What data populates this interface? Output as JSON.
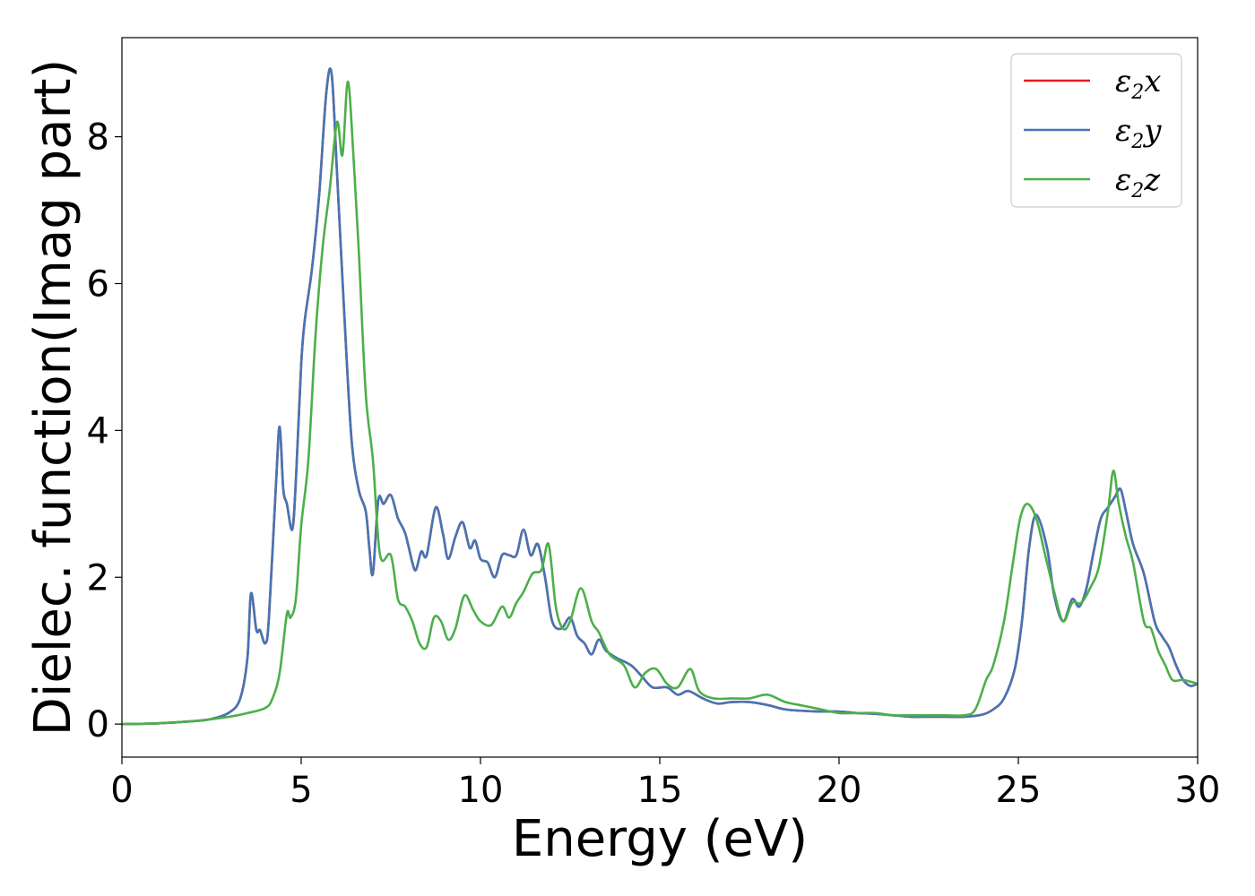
{
  "chart_data": {
    "type": "line",
    "xlabel": "Energy (eV)",
    "ylabel": "Dielec. function(Imag part)",
    "xlim": [
      0,
      30
    ],
    "ylim": [
      -0.45,
      9.35
    ],
    "xticks": [
      0,
      5,
      10,
      15,
      20,
      25,
      30
    ],
    "yticks": [
      0,
      2,
      4,
      6,
      8
    ],
    "legend_position": "top-right",
    "grid": false,
    "series": [
      {
        "name": "ε₂x",
        "label_base": "ε",
        "label_sub": "2",
        "label_tail": "x",
        "color": "#e41a1c",
        "x": [
          0,
          1,
          2,
          2.5,
          3.0,
          3.3,
          3.5,
          3.6,
          3.75,
          3.85,
          4.0,
          4.1,
          4.3,
          4.4,
          4.5,
          4.6,
          4.75,
          4.85,
          5.0,
          5.1,
          5.3,
          5.5,
          5.7,
          5.85,
          6.0,
          6.2,
          6.4,
          6.6,
          6.8,
          6.9,
          7.0,
          7.15,
          7.3,
          7.5,
          7.7,
          7.9,
          8.1,
          8.2,
          8.35,
          8.5,
          8.75,
          8.95,
          9.1,
          9.3,
          9.5,
          9.7,
          9.85,
          10.0,
          10.2,
          10.4,
          10.6,
          10.8,
          11.0,
          11.2,
          11.4,
          11.6,
          11.8,
          12.0,
          12.25,
          12.5,
          12.7,
          12.9,
          13.1,
          13.3,
          13.5,
          13.8,
          14.2,
          14.5,
          14.8,
          15.2,
          15.5,
          15.8,
          16.2,
          16.6,
          17.0,
          17.5,
          18.0,
          18.5,
          19.0,
          19.5,
          20.0,
          20.5,
          21.0,
          21.5,
          22.0,
          22.5,
          23.0,
          23.5,
          24.0,
          24.3,
          24.6,
          24.9,
          25.1,
          25.3,
          25.5,
          25.8,
          26.0,
          26.25,
          26.5,
          26.7,
          26.9,
          27.1,
          27.3,
          27.5,
          27.7,
          27.85,
          28.0,
          28.2,
          28.5,
          28.8,
          29.0,
          29.2,
          29.4,
          29.6,
          29.8,
          30.0
        ],
        "values": [
          0.0,
          0.01,
          0.04,
          0.07,
          0.16,
          0.35,
          0.9,
          1.78,
          1.28,
          1.28,
          1.1,
          1.45,
          3.3,
          4.05,
          3.2,
          3.0,
          2.65,
          3.3,
          4.9,
          5.5,
          6.2,
          7.2,
          8.6,
          8.85,
          7.5,
          5.6,
          3.9,
          3.2,
          2.9,
          2.4,
          2.05,
          3.05,
          3.0,
          3.12,
          2.8,
          2.6,
          2.2,
          2.1,
          2.35,
          2.3,
          2.95,
          2.6,
          2.25,
          2.55,
          2.75,
          2.4,
          2.5,
          2.25,
          2.2,
          2.0,
          2.3,
          2.3,
          2.3,
          2.65,
          2.3,
          2.45,
          2.0,
          1.4,
          1.3,
          1.45,
          1.2,
          1.1,
          0.95,
          1.15,
          1.0,
          0.9,
          0.8,
          0.65,
          0.5,
          0.5,
          0.4,
          0.45,
          0.35,
          0.28,
          0.3,
          0.3,
          0.26,
          0.2,
          0.18,
          0.17,
          0.17,
          0.15,
          0.14,
          0.12,
          0.1,
          0.1,
          0.1,
          0.1,
          0.13,
          0.2,
          0.35,
          0.75,
          1.4,
          2.4,
          2.85,
          2.4,
          1.75,
          1.4,
          1.7,
          1.6,
          1.85,
          2.35,
          2.8,
          2.95,
          3.1,
          3.2,
          2.9,
          2.45,
          2.05,
          1.4,
          1.2,
          1.05,
          0.8,
          0.6,
          0.52,
          0.55
        ]
      },
      {
        "name": "ε₂y",
        "label_base": "ε",
        "label_sub": "2",
        "label_tail": "y",
        "color": "#4575b4",
        "x": [
          0,
          1,
          2,
          2.5,
          3.0,
          3.3,
          3.5,
          3.6,
          3.75,
          3.85,
          4.0,
          4.1,
          4.3,
          4.4,
          4.5,
          4.6,
          4.75,
          4.85,
          5.0,
          5.1,
          5.3,
          5.5,
          5.7,
          5.85,
          6.0,
          6.2,
          6.4,
          6.6,
          6.8,
          6.9,
          7.0,
          7.15,
          7.3,
          7.5,
          7.7,
          7.9,
          8.1,
          8.2,
          8.35,
          8.5,
          8.75,
          8.95,
          9.1,
          9.3,
          9.5,
          9.7,
          9.85,
          10.0,
          10.2,
          10.4,
          10.6,
          10.8,
          11.0,
          11.2,
          11.4,
          11.6,
          11.8,
          12.0,
          12.25,
          12.5,
          12.7,
          12.9,
          13.1,
          13.3,
          13.5,
          13.8,
          14.2,
          14.5,
          14.8,
          15.2,
          15.5,
          15.8,
          16.2,
          16.6,
          17.0,
          17.5,
          18.0,
          18.5,
          19.0,
          19.5,
          20.0,
          20.5,
          21.0,
          21.5,
          22.0,
          22.5,
          23.0,
          23.5,
          24.0,
          24.3,
          24.6,
          24.9,
          25.1,
          25.3,
          25.5,
          25.8,
          26.0,
          26.25,
          26.5,
          26.7,
          26.9,
          27.1,
          27.3,
          27.5,
          27.7,
          27.85,
          28.0,
          28.2,
          28.5,
          28.8,
          29.0,
          29.2,
          29.4,
          29.6,
          29.8,
          30.0
        ],
        "values": [
          0.0,
          0.01,
          0.04,
          0.07,
          0.16,
          0.35,
          0.9,
          1.78,
          1.28,
          1.28,
          1.1,
          1.45,
          3.3,
          4.05,
          3.2,
          3.0,
          2.65,
          3.3,
          4.9,
          5.5,
          6.2,
          7.2,
          8.6,
          8.85,
          7.5,
          5.6,
          3.9,
          3.2,
          2.9,
          2.4,
          2.05,
          3.05,
          3.0,
          3.12,
          2.8,
          2.6,
          2.2,
          2.1,
          2.35,
          2.3,
          2.95,
          2.6,
          2.25,
          2.55,
          2.75,
          2.4,
          2.5,
          2.25,
          2.2,
          2.0,
          2.3,
          2.3,
          2.3,
          2.65,
          2.3,
          2.45,
          2.0,
          1.4,
          1.3,
          1.45,
          1.2,
          1.1,
          0.95,
          1.15,
          1.0,
          0.9,
          0.8,
          0.65,
          0.5,
          0.5,
          0.4,
          0.45,
          0.35,
          0.28,
          0.3,
          0.3,
          0.26,
          0.2,
          0.18,
          0.17,
          0.17,
          0.15,
          0.14,
          0.12,
          0.1,
          0.1,
          0.1,
          0.1,
          0.13,
          0.2,
          0.35,
          0.75,
          1.4,
          2.4,
          2.85,
          2.4,
          1.75,
          1.4,
          1.7,
          1.6,
          1.85,
          2.35,
          2.8,
          2.95,
          3.1,
          3.2,
          2.9,
          2.45,
          2.05,
          1.4,
          1.2,
          1.05,
          0.8,
          0.6,
          0.52,
          0.55
        ]
      },
      {
        "name": "ε₂z",
        "label_base": "ε",
        "label_sub": "2",
        "label_tail": "z",
        "color": "#4daf4a",
        "x": [
          0,
          1,
          2,
          3,
          3.5,
          4.0,
          4.2,
          4.4,
          4.6,
          4.7,
          4.85,
          5.0,
          5.2,
          5.4,
          5.6,
          5.8,
          6.0,
          6.15,
          6.3,
          6.45,
          6.6,
          6.8,
          7.0,
          7.2,
          7.5,
          7.7,
          7.9,
          8.1,
          8.3,
          8.5,
          8.7,
          8.9,
          9.1,
          9.3,
          9.55,
          9.8,
          10.0,
          10.3,
          10.6,
          10.8,
          11.0,
          11.2,
          11.45,
          11.7,
          11.9,
          12.1,
          12.3,
          12.5,
          12.8,
          13.1,
          13.3,
          13.6,
          14.0,
          14.3,
          14.6,
          14.9,
          15.2,
          15.5,
          15.85,
          16.1,
          16.5,
          17.0,
          17.5,
          18.0,
          18.5,
          19.0,
          19.5,
          20.0,
          20.5,
          21.0,
          21.5,
          22.0,
          22.5,
          23.0,
          23.5,
          23.8,
          24.1,
          24.3,
          24.6,
          24.85,
          25.05,
          25.25,
          25.5,
          25.75,
          26.0,
          26.25,
          26.5,
          26.75,
          27.0,
          27.25,
          27.5,
          27.65,
          27.8,
          28.0,
          28.2,
          28.5,
          28.7,
          28.9,
          29.1,
          29.3,
          29.6,
          30.0
        ],
        "values": [
          0.0,
          0.01,
          0.04,
          0.1,
          0.15,
          0.22,
          0.35,
          0.7,
          1.5,
          1.45,
          1.7,
          2.7,
          3.6,
          5.3,
          6.5,
          7.3,
          8.2,
          7.75,
          8.75,
          7.8,
          6.5,
          4.5,
          3.6,
          2.3,
          2.3,
          1.7,
          1.6,
          1.4,
          1.1,
          1.05,
          1.45,
          1.4,
          1.15,
          1.3,
          1.75,
          1.55,
          1.4,
          1.35,
          1.6,
          1.45,
          1.65,
          1.8,
          2.05,
          2.1,
          2.45,
          1.6,
          1.3,
          1.4,
          1.85,
          1.4,
          1.25,
          0.95,
          0.8,
          0.5,
          0.7,
          0.75,
          0.55,
          0.5,
          0.75,
          0.45,
          0.35,
          0.35,
          0.35,
          0.4,
          0.3,
          0.25,
          0.2,
          0.15,
          0.15,
          0.15,
          0.12,
          0.12,
          0.12,
          0.12,
          0.12,
          0.2,
          0.6,
          0.8,
          1.4,
          2.2,
          2.8,
          3.0,
          2.8,
          2.3,
          1.8,
          1.4,
          1.65,
          1.65,
          1.85,
          2.15,
          2.9,
          3.45,
          3.0,
          2.55,
          2.2,
          1.4,
          1.3,
          1.0,
          0.8,
          0.6,
          0.6,
          0.55
        ]
      }
    ]
  }
}
